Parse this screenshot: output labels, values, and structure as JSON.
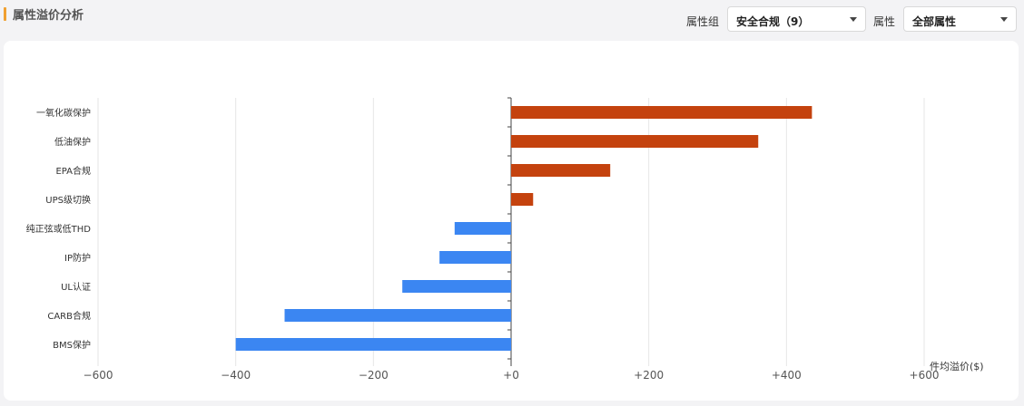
{
  "header": {
    "title": "属性溢价分析",
    "group_label": "属性组",
    "group_value": "安全合规（9）",
    "attr_label": "属性",
    "attr_value": "全部属性"
  },
  "colors": {
    "positive": "#c4420e",
    "negative": "#3b86f2",
    "accent": "#f0a030"
  },
  "chart_data": {
    "type": "bar",
    "orientation": "horizontal",
    "categories": [
      "一氧化碳保护",
      "低油保护",
      "EPA合规",
      "UPS级切换",
      "纯正弦或低THD",
      "IP防护",
      "UL认证",
      "CARB合规",
      "BMS保护"
    ],
    "values": [
      437,
      359,
      144,
      32,
      -82,
      -104,
      -158,
      -329,
      -400
    ],
    "x_ticks": [
      "−600",
      "−400",
      "−200",
      "+0",
      "+200",
      "+400",
      "+600"
    ],
    "xlim": [
      -600,
      600
    ],
    "unit_label": "件均溢价($)",
    "grid": true
  }
}
